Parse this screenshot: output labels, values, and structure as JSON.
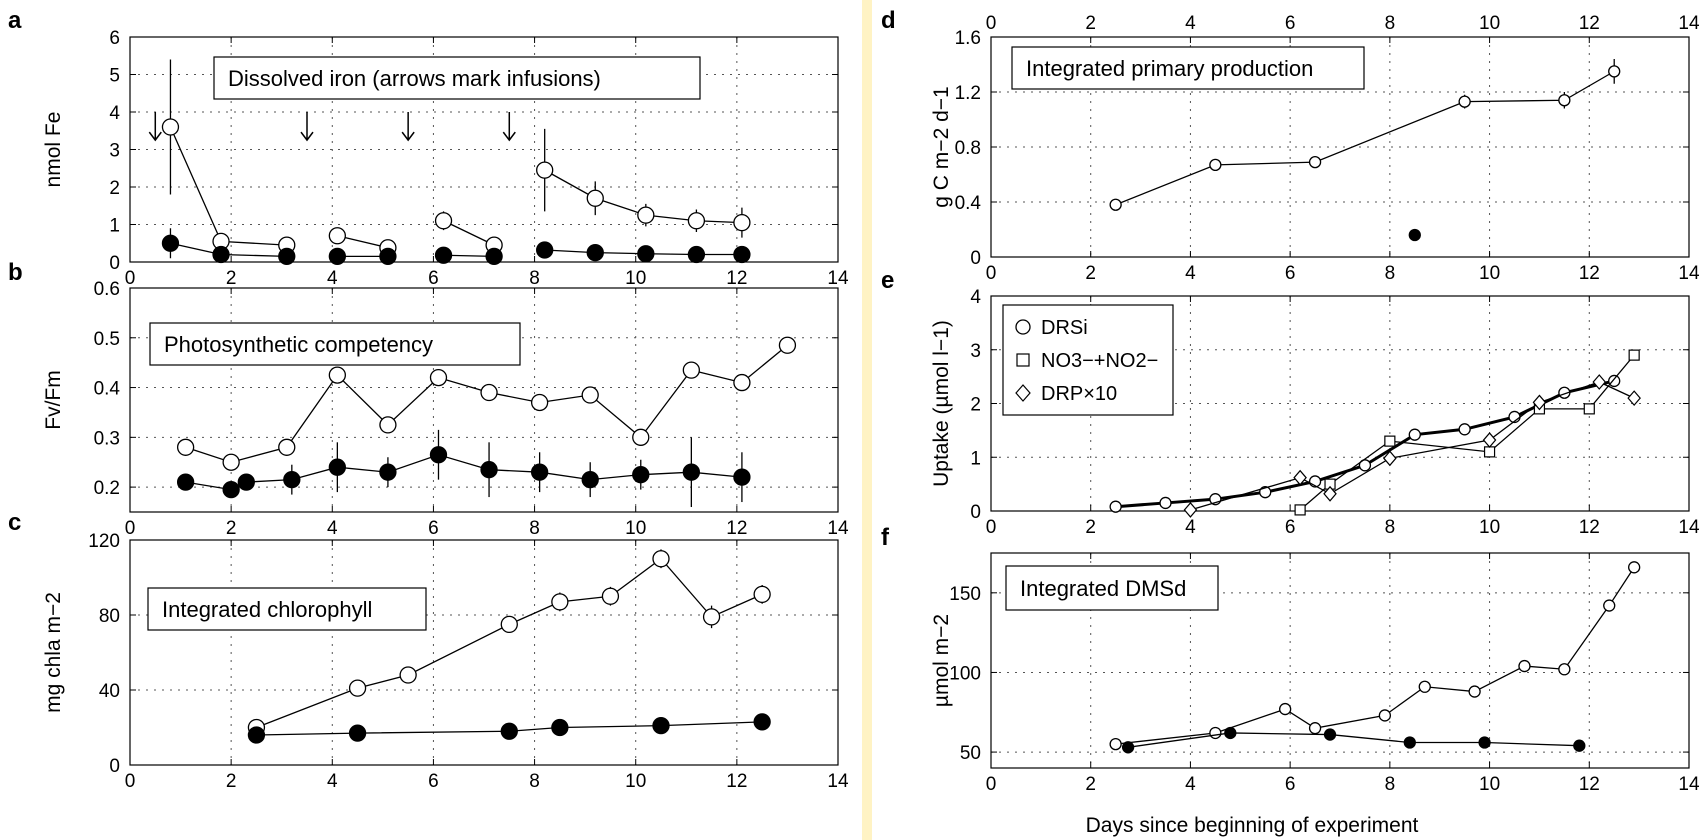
{
  "x_axis_label": "Days since beginning of experiment",
  "chart_data": [
    {
      "id": "a",
      "type": "line",
      "panel_label": "a",
      "ylabel": "nmol Fe",
      "annotation": "Dissolved iron (arrows mark infusions)",
      "xlim": [
        0,
        14
      ],
      "ylim": [
        0,
        6
      ],
      "xticks": [
        0,
        2,
        4,
        6,
        8,
        10,
        12,
        14
      ],
      "yticks": [
        0,
        1,
        2,
        3,
        4,
        5,
        6
      ],
      "grid": true,
      "arrows_x": [
        0.5,
        3.5,
        5.5,
        7.5
      ],
      "series": [
        {
          "style": "open",
          "segments": [
            [
              {
                "x": 0.8,
                "y": 3.6,
                "e": 1.8
              },
              {
                "x": 1.8,
                "y": 0.55
              },
              {
                "x": 3.1,
                "y": 0.45
              }
            ],
            [
              {
                "x": 4.1,
                "y": 0.7
              },
              {
                "x": 5.1,
                "y": 0.38
              }
            ],
            [
              {
                "x": 6.2,
                "y": 1.1,
                "e": 0.25
              },
              {
                "x": 7.2,
                "y": 0.45
              }
            ],
            [
              {
                "x": 8.2,
                "y": 2.45,
                "e": 1.1
              },
              {
                "x": 9.2,
                "y": 1.7,
                "e": 0.45
              },
              {
                "x": 10.2,
                "y": 1.25,
                "e": 0.3
              },
              {
                "x": 11.2,
                "y": 1.1,
                "e": 0.3
              },
              {
                "x": 12.1,
                "y": 1.05,
                "e": 0.4
              }
            ]
          ]
        },
        {
          "style": "filled",
          "segments": [
            [
              {
                "x": 0.8,
                "y": 0.5,
                "e": 0.4
              },
              {
                "x": 1.8,
                "y": 0.2
              },
              {
                "x": 3.1,
                "y": 0.15
              }
            ],
            [
              {
                "x": 4.1,
                "y": 0.15
              },
              {
                "x": 5.1,
                "y": 0.15
              }
            ],
            [
              {
                "x": 6.2,
                "y": 0.18
              },
              {
                "x": 7.2,
                "y": 0.15
              }
            ],
            [
              {
                "x": 8.2,
                "y": 0.32,
                "e": 0.2
              },
              {
                "x": 9.2,
                "y": 0.25,
                "e": 0.15
              },
              {
                "x": 10.2,
                "y": 0.22
              },
              {
                "x": 11.2,
                "y": 0.2
              },
              {
                "x": 12.1,
                "y": 0.2
              }
            ]
          ]
        }
      ]
    },
    {
      "id": "b",
      "type": "line",
      "panel_label": "b",
      "ylabel": "Fv/Fm",
      "annotation": "Photosynthetic competency",
      "xlim": [
        0,
        14
      ],
      "ylim": [
        0.15,
        0.6
      ],
      "xticks": [
        0,
        2,
        4,
        6,
        8,
        10,
        12,
        14
      ],
      "yticks": [
        0.2,
        0.3,
        0.4,
        0.5,
        0.6
      ],
      "grid": true,
      "series": [
        {
          "style": "open",
          "segments": [
            [
              {
                "x": 1.1,
                "y": 0.28,
                "e": 0.015
              },
              {
                "x": 2.0,
                "y": 0.25,
                "e": 0.01
              },
              {
                "x": 3.1,
                "y": 0.28
              },
              {
                "x": 4.1,
                "y": 0.425,
                "e": 0.015
              },
              {
                "x": 5.1,
                "y": 0.325
              },
              {
                "x": 6.1,
                "y": 0.42,
                "e": 0.01
              },
              {
                "x": 7.1,
                "y": 0.39,
                "e": 0.01
              },
              {
                "x": 8.1,
                "y": 0.37
              },
              {
                "x": 9.1,
                "y": 0.385,
                "e": 0.01
              },
              {
                "x": 10.1,
                "y": 0.3
              },
              {
                "x": 11.1,
                "y": 0.435,
                "e": 0.015
              },
              {
                "x": 12.1,
                "y": 0.41
              },
              {
                "x": 13.0,
                "y": 0.485
              }
            ]
          ]
        },
        {
          "style": "filled",
          "segments": [
            [
              {
                "x": 1.1,
                "y": 0.21,
                "e": 0.015
              },
              {
                "x": 2.0,
                "y": 0.195
              },
              {
                "x": 2.3,
                "y": 0.21
              },
              {
                "x": 3.2,
                "y": 0.215,
                "e": 0.03
              },
              {
                "x": 4.1,
                "y": 0.24,
                "e": 0.05
              },
              {
                "x": 5.1,
                "y": 0.23,
                "e": 0.03
              },
              {
                "x": 6.1,
                "y": 0.265,
                "e": 0.05
              },
              {
                "x": 7.1,
                "y": 0.235,
                "e": 0.055
              },
              {
                "x": 8.1,
                "y": 0.23,
                "e": 0.04
              },
              {
                "x": 9.1,
                "y": 0.215,
                "e": 0.035
              },
              {
                "x": 10.1,
                "y": 0.225,
                "e": 0.03
              },
              {
                "x": 11.1,
                "y": 0.23,
                "e": 0.07
              },
              {
                "x": 12.1,
                "y": 0.22,
                "e": 0.05
              }
            ]
          ]
        }
      ]
    },
    {
      "id": "c",
      "type": "line",
      "panel_label": "c",
      "ylabel": "mg chla m−2",
      "annotation": "Integrated chlorophyll",
      "xlim": [
        0,
        14
      ],
      "ylim": [
        0,
        120
      ],
      "xticks": [
        0,
        2,
        4,
        6,
        8,
        10,
        12,
        14
      ],
      "yticks": [
        0,
        40,
        80,
        120
      ],
      "grid": true,
      "series": [
        {
          "style": "open",
          "segments": [
            [
              {
                "x": 2.5,
                "y": 20
              },
              {
                "x": 4.5,
                "y": 41
              },
              {
                "x": 5.5,
                "y": 48
              },
              {
                "x": 7.5,
                "y": 75
              },
              {
                "x": 8.5,
                "y": 87,
                "e": 5
              },
              {
                "x": 9.5,
                "y": 90,
                "e": 5
              },
              {
                "x": 10.5,
                "y": 110,
                "e": 5
              },
              {
                "x": 11.5,
                "y": 79,
                "e": 6
              },
              {
                "x": 12.5,
                "y": 91,
                "e": 5
              }
            ]
          ]
        },
        {
          "style": "filled",
          "segments": [
            [
              {
                "x": 2.5,
                "y": 16
              },
              {
                "x": 4.5,
                "y": 17
              },
              {
                "x": 7.5,
                "y": 18
              },
              {
                "x": 8.5,
                "y": 20
              },
              {
                "x": 10.5,
                "y": 21
              },
              {
                "x": 12.5,
                "y": 23
              }
            ]
          ]
        }
      ]
    },
    {
      "id": "d",
      "type": "line",
      "panel_label": "d",
      "ylabel": "g C m−2 d−1",
      "annotation": "Integrated primary production",
      "xlim": [
        0,
        14
      ],
      "ylim": [
        0,
        1.6
      ],
      "xticks": [
        0,
        2,
        4,
        6,
        8,
        10,
        12,
        14
      ],
      "yticks": [
        0,
        0.4,
        0.8,
        1.2,
        1.6
      ],
      "grid": true,
      "series": [
        {
          "style": "open",
          "size": "small",
          "segments": [
            [
              {
                "x": 2.5,
                "y": 0.38
              },
              {
                "x": 4.5,
                "y": 0.67
              },
              {
                "x": 6.5,
                "y": 0.69,
                "e": 0.04
              },
              {
                "x": 9.5,
                "y": 1.13,
                "e": 0.05
              },
              {
                "x": 11.5,
                "y": 1.14,
                "e": 0.06
              },
              {
                "x": 12.5,
                "y": 1.35,
                "e": 0.09
              }
            ]
          ]
        },
        {
          "style": "filled",
          "size": "small",
          "segments": [
            [
              {
                "x": 8.5,
                "y": 0.16
              }
            ]
          ]
        }
      ]
    },
    {
      "id": "e",
      "type": "line",
      "panel_label": "e",
      "ylabel": "Uptake (µmol l−1)",
      "xlim": [
        0,
        14
      ],
      "ylim": [
        0,
        4
      ],
      "xticks": [
        0,
        2,
        4,
        6,
        8,
        10,
        12,
        14
      ],
      "yticks": [
        0,
        1,
        2,
        3,
        4
      ],
      "grid": true,
      "legend": [
        "DRSi",
        "NO3−+NO2−",
        "DRP×10"
      ],
      "series": [
        {
          "name": "DRSi",
          "marker": "circle",
          "size": "small",
          "bold": true,
          "segments": [
            [
              {
                "x": 2.5,
                "y": 0.08
              },
              {
                "x": 3.5,
                "y": 0.15
              },
              {
                "x": 4.5,
                "y": 0.22
              },
              {
                "x": 5.5,
                "y": 0.35
              },
              {
                "x": 6.5,
                "y": 0.55
              },
              {
                "x": 7.5,
                "y": 0.85
              },
              {
                "x": 8.5,
                "y": 1.42
              },
              {
                "x": 9.5,
                "y": 1.52
              },
              {
                "x": 10.5,
                "y": 1.75
              },
              {
                "x": 11.5,
                "y": 2.2
              },
              {
                "x": 12.5,
                "y": 2.42
              }
            ]
          ]
        },
        {
          "name": "NO3−+NO2−",
          "marker": "square",
          "size": "small",
          "segments": [
            [
              {
                "x": 6.2,
                "y": 0.02
              },
              {
                "x": 6.8,
                "y": 0.5
              },
              {
                "x": 8.0,
                "y": 1.3
              },
              {
                "x": 10.0,
                "y": 1.1
              },
              {
                "x": 11.0,
                "y": 1.9
              },
              {
                "x": 12.0,
                "y": 1.9
              },
              {
                "x": 12.9,
                "y": 2.9
              }
            ]
          ]
        },
        {
          "name": "DRP×10",
          "marker": "diamond",
          "size": "small",
          "segments": [
            [
              {
                "x": 4.0,
                "y": 0.02
              },
              {
                "x": 6.2,
                "y": 0.62
              },
              {
                "x": 6.8,
                "y": 0.32
              },
              {
                "x": 8.0,
                "y": 0.98
              },
              {
                "x": 10.0,
                "y": 1.32
              },
              {
                "x": 11.0,
                "y": 2.02
              },
              {
                "x": 12.2,
                "y": 2.4
              },
              {
                "x": 12.9,
                "y": 2.1
              }
            ]
          ]
        }
      ]
    },
    {
      "id": "f",
      "type": "line",
      "panel_label": "f",
      "ylabel": "µmol m−2",
      "annotation": "Integrated DMSd",
      "xlim": [
        0,
        14
      ],
      "ylim": [
        40,
        175
      ],
      "xticks": [
        0,
        2,
        4,
        6,
        8,
        10,
        12,
        14
      ],
      "yticks": [
        50,
        100,
        150
      ],
      "grid": true,
      "show_xlabel": true,
      "series": [
        {
          "style": "open",
          "size": "small",
          "segments": [
            [
              {
                "x": 2.5,
                "y": 55
              },
              {
                "x": 4.5,
                "y": 62
              },
              {
                "x": 5.9,
                "y": 77
              },
              {
                "x": 6.5,
                "y": 65
              },
              {
                "x": 7.9,
                "y": 73
              },
              {
                "x": 8.7,
                "y": 91
              },
              {
                "x": 9.7,
                "y": 88
              },
              {
                "x": 10.7,
                "y": 104
              },
              {
                "x": 11.5,
                "y": 102
              },
              {
                "x": 12.4,
                "y": 142
              },
              {
                "x": 12.9,
                "y": 166
              }
            ]
          ]
        },
        {
          "style": "filled",
          "size": "small",
          "segments": [
            [
              {
                "x": 2.75,
                "y": 53
              },
              {
                "x": 4.8,
                "y": 62
              },
              {
                "x": 6.8,
                "y": 61
              },
              {
                "x": 8.4,
                "y": 56
              },
              {
                "x": 9.9,
                "y": 56
              },
              {
                "x": 11.8,
                "y": 54
              }
            ]
          ]
        }
      ]
    }
  ]
}
